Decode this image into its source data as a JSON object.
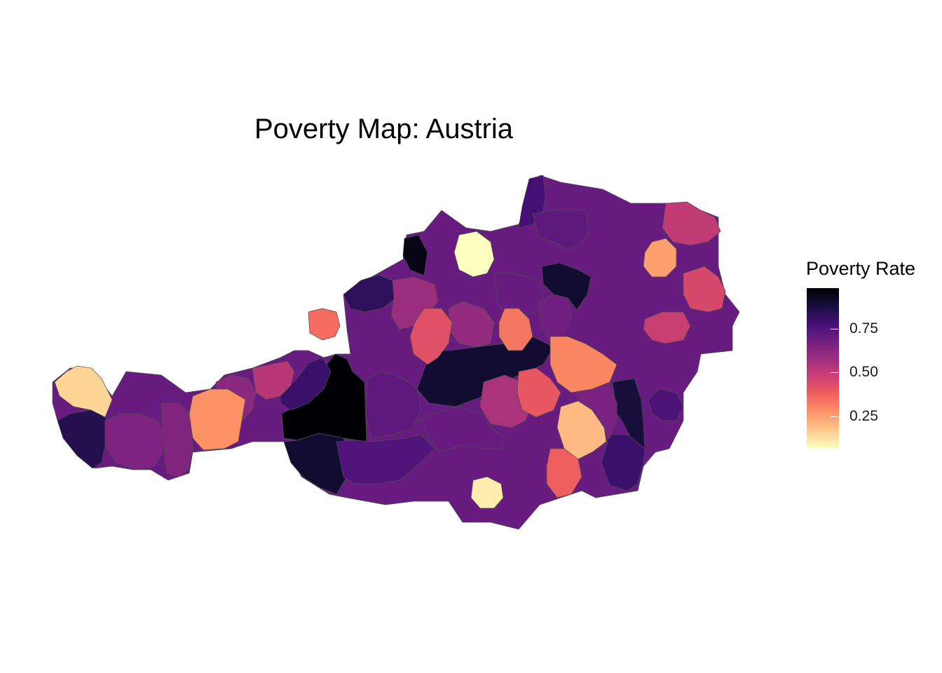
{
  "title": "Poverty Map: Austria",
  "legend": {
    "title": "Poverty Rate",
    "ticks": [
      "0.75",
      "0.50",
      "0.25"
    ],
    "tick_values": [
      0.75,
      0.5,
      0.25
    ],
    "range": [
      0.07,
      0.98
    ],
    "palette": "magma",
    "stops": [
      "#fcfdbf",
      "#fec98d",
      "#fd9567",
      "#f1605d",
      "#cd4071",
      "#9e2f7f",
      "#721f81",
      "#451077",
      "#180f3e",
      "#000004"
    ]
  },
  "chart_data": {
    "type": "choropleth",
    "title": "Poverty Map: Austria",
    "legend_title": "Poverty Rate",
    "legend_ticks": [
      0.25,
      0.5,
      0.75
    ],
    "value_range": [
      0.07,
      0.98
    ],
    "colorscale": "magma (reversed: light = low, dark = high)",
    "regions": [
      {
        "value": 0.98
      },
      {
        "value": 0.95
      },
      {
        "value": 0.9
      },
      {
        "value": 0.9
      },
      {
        "value": 0.9
      },
      {
        "value": 0.88
      },
      {
        "value": 0.85
      },
      {
        "value": 0.83
      },
      {
        "value": 0.8
      },
      {
        "value": 0.8
      },
      {
        "value": 0.78
      },
      {
        "value": 0.76
      },
      {
        "value": 0.75
      },
      {
        "value": 0.72
      },
      {
        "value": 0.72
      },
      {
        "value": 0.7
      },
      {
        "value": 0.7
      },
      {
        "value": 0.68
      },
      {
        "value": 0.66
      },
      {
        "value": 0.65
      },
      {
        "value": 0.64
      },
      {
        "value": 0.62
      },
      {
        "value": 0.6
      },
      {
        "value": 0.58
      },
      {
        "value": 0.55
      },
      {
        "value": 0.52
      },
      {
        "value": 0.5
      },
      {
        "value": 0.48
      },
      {
        "value": 0.45
      },
      {
        "value": 0.42
      },
      {
        "value": 0.4
      },
      {
        "value": 0.38
      },
      {
        "value": 0.35
      },
      {
        "value": 0.33
      },
      {
        "value": 0.3
      },
      {
        "value": 0.28
      },
      {
        "value": 0.25
      },
      {
        "value": 0.2
      },
      {
        "value": 0.15
      },
      {
        "value": 0.1
      },
      {
        "value": 0.07
      }
    ]
  }
}
